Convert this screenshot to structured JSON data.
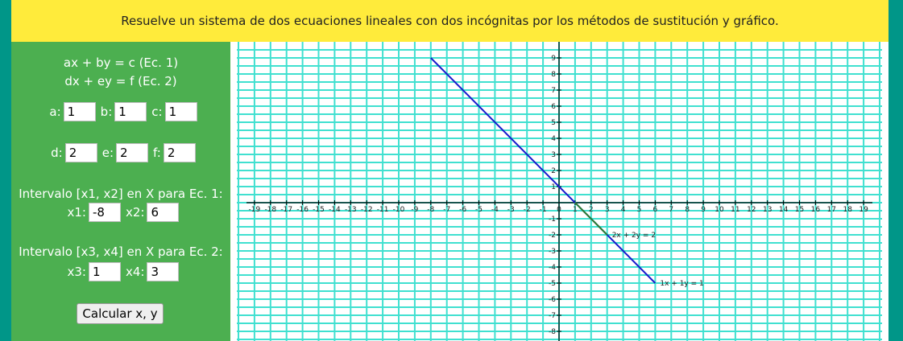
{
  "header": {
    "title": "Resuelve un sistema de dos ecuaciones lineales con dos incógnitas por los métodos de sustitución y gráfico."
  },
  "panel": {
    "eq1": "ax + by = c (Ec. 1)",
    "eq2": "dx + ey = f (Ec. 2)",
    "labels": {
      "a": "a:",
      "b": "b:",
      "c": "c:",
      "d": "d:",
      "e": "e:",
      "f": "f:",
      "x1": "x1:",
      "x2": "x2:",
      "x3": "x3:",
      "x4": "x4:"
    },
    "values": {
      "a": "1",
      "b": "1",
      "c": "1",
      "d": "2",
      "e": "2",
      "f": "2",
      "x1": "-8",
      "x2": "6",
      "x3": "1",
      "x4": "3"
    },
    "interval1": "Intervalo [x1, x2] en X para Ec. 1:",
    "interval2": "Intervalo [x3, x4] en X para Ec. 2:",
    "button": "Calcular x, y"
  },
  "graph": {
    "grid_color": "#40e0d0",
    "x_ticks": [
      "-19",
      "-18",
      "-17",
      "-16",
      "-15",
      "-14",
      "-13",
      "-12",
      "-11",
      "-10",
      "-9",
      "-8",
      "-7",
      "-6",
      "-5",
      "-4",
      "-3",
      "-2",
      "-1",
      "0",
      "1",
      "2",
      "3",
      "4",
      "5",
      "6",
      "7",
      "8",
      "9",
      "10",
      "11",
      "12",
      "13",
      "14",
      "15",
      "16",
      "17",
      "18",
      "19"
    ],
    "y_ticks": [
      "9",
      "8",
      "7",
      "6",
      "5",
      "4",
      "3",
      "2",
      "1",
      "-1",
      "-2",
      "-3",
      "-4",
      "-5",
      "-6",
      "-7",
      "-8"
    ],
    "lines": [
      {
        "label": "1x + 1y = 1",
        "color": "#1a1acc",
        "x_from": -8,
        "x_to": 6
      },
      {
        "label": "2x + 2y = 2",
        "color": "#2e7d32",
        "x_from": 1,
        "x_to": 3
      }
    ]
  }
}
